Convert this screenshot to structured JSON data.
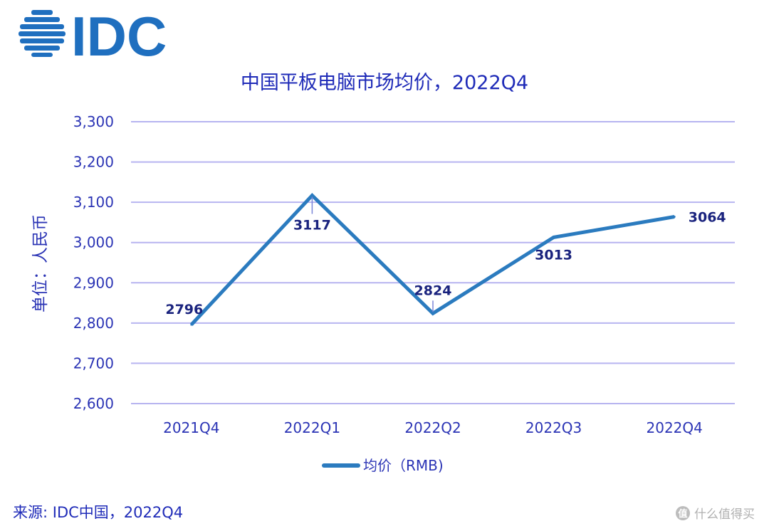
{
  "logo": {
    "text": "IDC",
    "color": "#1f6fbf"
  },
  "chart_data": {
    "type": "line",
    "title": "中国平板电脑市场均价，2022Q4",
    "ylabel": "单位：人民币",
    "xlabel": "",
    "categories": [
      "2021Q4",
      "2022Q1",
      "2022Q2",
      "2022Q3",
      "2022Q4"
    ],
    "series": [
      {
        "name": "均价（RMB)",
        "values": [
          2796,
          3117,
          2824,
          3013,
          3064
        ],
        "color": "#2b7bbf"
      }
    ],
    "ylim": [
      2600,
      3300
    ],
    "yticks": [
      2600,
      2700,
      2800,
      2900,
      3000,
      3100,
      3200,
      3300
    ],
    "ytick_labels": [
      "2,600",
      "2,700",
      "2,800",
      "2,900",
      "3,000",
      "3,100",
      "3,200",
      "3,300"
    ],
    "grid": true,
    "gridline_color": "#b7b4f0",
    "legend_position": "bottom",
    "data_labels": [
      "2796",
      "3117",
      "2824",
      "3013",
      "3064"
    ]
  },
  "source": "来源: IDC中国，2022Q4",
  "watermark": "什么值得买",
  "watermark_icon": "值"
}
